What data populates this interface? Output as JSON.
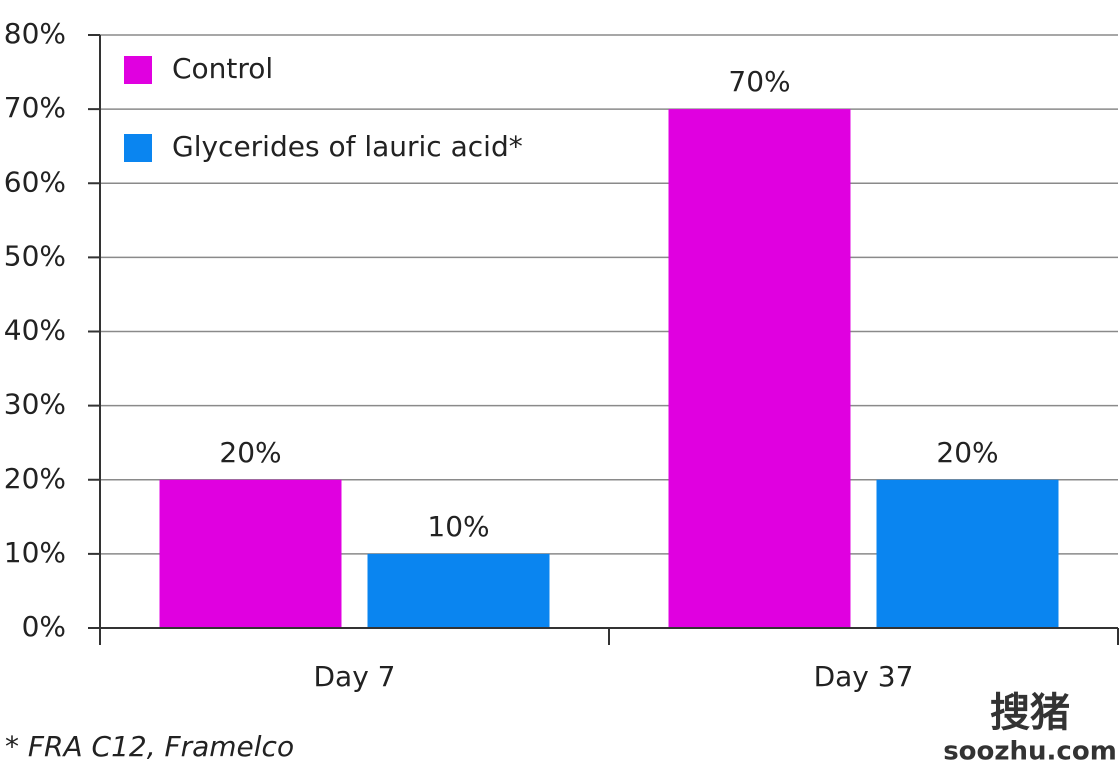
{
  "chart_data": {
    "type": "bar",
    "categories": [
      "Day 7",
      "Day 37"
    ],
    "series": [
      {
        "name": "Control",
        "color": "#e000e0",
        "values": [
          20,
          70
        ],
        "value_labels": [
          "20%",
          "70%"
        ]
      },
      {
        "name": "Glycerides of lauric acid*",
        "color": "#0a85f0",
        "values": [
          10,
          20
        ],
        "value_labels": [
          "10%",
          "20%"
        ]
      }
    ],
    "ylim": [
      0,
      80
    ],
    "yticks": [
      {
        "value": 0,
        "label": "0%"
      },
      {
        "value": 10,
        "label": "10%"
      },
      {
        "value": 20,
        "label": "20%"
      },
      {
        "value": 30,
        "label": "30%"
      },
      {
        "value": 40,
        "label": "40%"
      },
      {
        "value": 50,
        "label": "50%"
      },
      {
        "value": 60,
        "label": "60%"
      },
      {
        "value": 70,
        "label": "70%"
      },
      {
        "value": 80,
        "label": "80%"
      }
    ],
    "grid": true,
    "legend": "upper left",
    "footnote": "* FRA C12, Framelco",
    "watermark": {
      "logo": "搜猪",
      "url": "soozhu.com"
    }
  }
}
